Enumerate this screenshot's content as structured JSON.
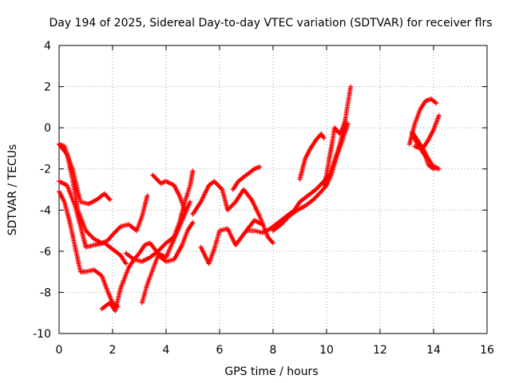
{
  "chart_data": {
    "type": "scatter",
    "title": "Day 194 of 2025, Sidereal Day-to-day VTEC variation (SDTVAR) for receiver flrs",
    "xlabel": "GPS time / hours",
    "ylabel": "SDTVAR / TECUs",
    "xlim": [
      0,
      16
    ],
    "ylim": [
      -10,
      4
    ],
    "xticks": [
      "0",
      "2",
      "4",
      "6",
      "8",
      "10",
      "12",
      "14",
      "16"
    ],
    "yticks": [
      "-10",
      "-8",
      "-6",
      "-4",
      "-2",
      "0",
      "2",
      "4"
    ],
    "grid": true,
    "marker": "plus",
    "series_color": "#ff0000",
    "series": [
      {
        "x": [
          0.0,
          0.3,
          0.5,
          0.7,
          1.0,
          1.3,
          1.6,
          1.8,
          2.0,
          2.3,
          2.6,
          2.9,
          3.1,
          3.3
        ],
        "y": [
          -0.8,
          -1.3,
          -2.5,
          -4.0,
          -5.0,
          -5.4,
          -5.6,
          -5.5,
          -5.2,
          -4.8,
          -4.7,
          -5.0,
          -4.3,
          -3.3
        ]
      },
      {
        "x": [
          0.0,
          0.2,
          0.5,
          0.8,
          1.1,
          1.4,
          1.7,
          1.9
        ],
        "y": [
          -0.8,
          -0.9,
          -2.0,
          -3.6,
          -3.7,
          -3.5,
          -3.2,
          -3.5
        ]
      },
      {
        "x": [
          0.0,
          0.3,
          0.6,
          0.8,
          1.0,
          1.3,
          1.7,
          2.0,
          2.3,
          2.5
        ],
        "y": [
          -2.6,
          -2.8,
          -3.8,
          -4.8,
          -5.8,
          -5.7,
          -5.6,
          -5.9,
          -6.2,
          -6.6
        ]
      },
      {
        "x": [
          0.0,
          0.2,
          0.4,
          0.6,
          0.8,
          1.0,
          1.3,
          1.6,
          1.8,
          2.0,
          2.2
        ],
        "y": [
          -3.1,
          -3.6,
          -4.6,
          -5.8,
          -7.0,
          -7.0,
          -6.9,
          -7.2,
          -7.9,
          -8.5,
          -8.7
        ]
      },
      {
        "x": [
          1.6,
          1.9,
          2.1,
          2.3,
          2.6,
          2.8,
          3.0,
          3.2,
          3.4,
          3.7,
          4.0,
          4.3,
          4.6,
          4.9
        ],
        "y": [
          -8.8,
          -8.5,
          -8.9,
          -7.8,
          -6.8,
          -6.4,
          -6.1,
          -5.7,
          -5.6,
          -6.1,
          -6.3,
          -5.4,
          -4.5,
          -3.6
        ]
      },
      {
        "x": [
          3.5,
          3.8,
          4.0,
          4.3,
          4.5,
          4.7
        ],
        "y": [
          -2.3,
          -2.7,
          -2.6,
          -2.8,
          -3.3,
          -4.0
        ]
      },
      {
        "x": [
          3.1,
          3.3,
          3.5,
          3.7,
          4.0,
          4.3,
          4.6,
          4.8,
          5.0
        ],
        "y": [
          -8.5,
          -7.6,
          -6.9,
          -6.2,
          -6.5,
          -6.4,
          -5.7,
          -5.0,
          -4.6
        ]
      },
      {
        "x": [
          2.5,
          2.8,
          3.1,
          3.4,
          3.7,
          4.0,
          4.3,
          4.5,
          4.7,
          4.9,
          5.0
        ],
        "y": [
          -6.1,
          -6.4,
          -6.5,
          -6.3,
          -6.0,
          -5.6,
          -5.3,
          -4.6,
          -3.6,
          -2.8,
          -2.1
        ]
      },
      {
        "x": [
          5.3,
          5.6,
          5.8,
          6.0,
          6.3,
          6.6,
          7.0,
          7.3,
          7.6
        ],
        "y": [
          -5.8,
          -6.6,
          -5.9,
          -5.0,
          -4.9,
          -5.7,
          -5.0,
          -4.5,
          -4.7
        ]
      },
      {
        "x": [
          5.0,
          5.3,
          5.6,
          5.8,
          6.1,
          6.3,
          6.6,
          6.9,
          7.2,
          7.5,
          7.8,
          8.0
        ],
        "y": [
          -4.2,
          -3.6,
          -2.8,
          -2.6,
          -3.0,
          -4.0,
          -3.6,
          -3.0,
          -3.5,
          -4.3,
          -5.3,
          -5.6
        ]
      },
      {
        "x": [
          6.5,
          6.7,
          6.9,
          7.1,
          7.3,
          7.5
        ],
        "y": [
          -3.0,
          -2.6,
          -2.4,
          -2.2,
          -2.0,
          -1.9
        ]
      },
      {
        "x": [
          7.0,
          7.3,
          7.6,
          7.9,
          8.2,
          8.5,
          8.8,
          9.0,
          9.3,
          9.6,
          9.9,
          10.1,
          10.3,
          10.5,
          10.7,
          10.9
        ],
        "y": [
          -5.0,
          -5.0,
          -5.1,
          -4.9,
          -4.6,
          -4.3,
          -4.0,
          -3.6,
          -3.3,
          -3.0,
          -2.6,
          -2.3,
          -1.6,
          -0.8,
          0.4,
          2.0
        ]
      },
      {
        "x": [
          8.0,
          8.3,
          8.6,
          8.9,
          9.2,
          9.5,
          9.8,
          10.0,
          10.2,
          10.4,
          10.6,
          10.8
        ],
        "y": [
          -5.0,
          -4.7,
          -4.3,
          -4.0,
          -3.8,
          -3.5,
          -3.1,
          -2.8,
          -2.2,
          -1.3,
          -0.6,
          0.2
        ]
      },
      {
        "x": [
          9.0,
          9.2,
          9.4,
          9.6,
          9.8,
          9.9
        ],
        "y": [
          -2.5,
          -1.5,
          -1.0,
          -0.6,
          -0.3,
          -0.5
        ]
      },
      {
        "x": [
          9.9,
          10.0,
          10.1,
          10.2,
          10.3,
          10.5,
          10.7
        ],
        "y": [
          -2.8,
          -2.3,
          -1.5,
          -0.8,
          0.0,
          -0.3,
          0.3
        ]
      },
      {
        "x": [
          13.1,
          13.3,
          13.5,
          13.7,
          13.9,
          14.1
        ],
        "y": [
          -0.8,
          0.2,
          0.9,
          1.3,
          1.4,
          1.2
        ]
      },
      {
        "x": [
          13.2,
          13.4,
          13.6,
          13.8,
          14.0,
          14.2
        ],
        "y": [
          -0.3,
          -0.8,
          -1.0,
          -0.6,
          -0.1,
          0.6
        ]
      },
      {
        "x": [
          13.3,
          13.5,
          13.7,
          13.8,
          14.0,
          14.1
        ],
        "y": [
          -0.9,
          -1.0,
          -1.4,
          -1.8,
          -2.0,
          -1.9
        ]
      },
      {
        "x": [
          13.2,
          13.4,
          13.6,
          13.8,
          14.0,
          14.2
        ],
        "y": [
          -0.2,
          -0.6,
          -1.0,
          -1.5,
          -1.9,
          -2.0
        ]
      }
    ]
  }
}
